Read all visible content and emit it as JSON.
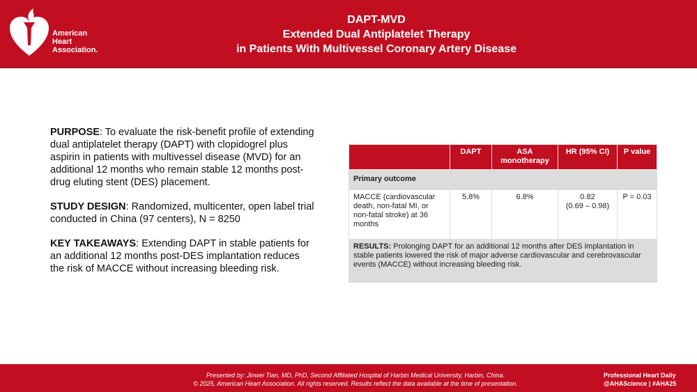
{
  "header": {
    "logo_text": [
      "American",
      "Heart",
      "Association."
    ],
    "title_lines": [
      "DAPT-MVD",
      "Extended Dual Antiplatelet Therapy",
      "in Patients With Multivessel Coronary Artery Disease"
    ],
    "color": "#c10e21"
  },
  "left": {
    "purpose_label": "PURPOSE",
    "purpose": ":  To evaluate the risk-benefit profile of extending dual antiplatelet therapy (DAPT) with clopidogrel plus aspirin in patients with multivessel disease (MVD) for an additional 12 months who remain stable 12 months post-drug eluting stent (DES) placement.",
    "design_label": "STUDY DESIGN",
    "design": ":  Randomized, multicenter, open label trial conducted in China (97 centers), N = 8250",
    "takeaways_label": "KEY TAKEAWAYS",
    "takeaways": ":  Extending DAPT in stable patients for an additional 12 months post-DES implantation reduces the risk of MACCE without increasing bleeding risk."
  },
  "table": {
    "headers": [
      "",
      "DAPT",
      "ASA monotherapy",
      "HR (95% CI)",
      "P value"
    ],
    "section": "Primary outcome",
    "row": {
      "outcome": "MACCE (cardiovascular death, non-fatal MI, or non-fatal stroke) at 36 months",
      "dapt": "5.8%",
      "asa": "6.8%",
      "hr": "0.82",
      "ci": "(0.69 – 0.98)",
      "p": "P = 0.03"
    },
    "results_label": "RESULTS:",
    "results": " Prolonging DAPT for an additional 12 months after DES implantation in stable patients lowered the risk of major adverse cardiovascular and cerebrovascular events (MACCE) without increasing bleeding risk."
  },
  "footer": {
    "presented": "Presented by:  Jinwei Tian, MD, PhD, Second Affiliated Hospital of Harbin Medical University, Harbin, China.",
    "copyright": "© 2025, American Heart Association.  All rights reserved.  Results reflect the data available at the time of presentation.",
    "brand": "Professional Heart Daily",
    "tags": "@AHAScience | #AHA25"
  }
}
